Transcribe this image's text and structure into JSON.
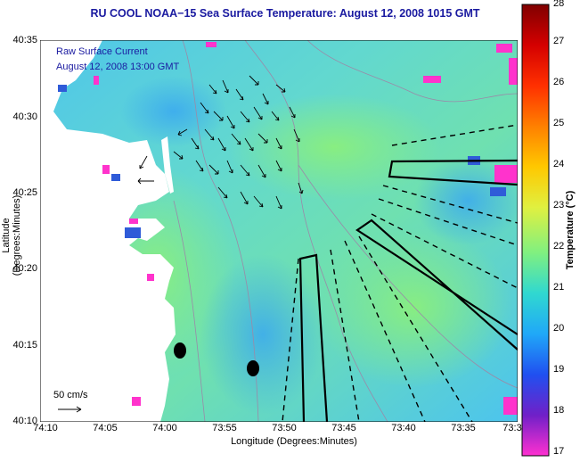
{
  "title": "RU COOL  NOAA−15  Sea Surface Temperature:  August 12, 2008 1015 GMT",
  "legend": {
    "line1": "Raw Surface Current",
    "line2": "August 12, 2008 13:00 GMT",
    "scale_label": "50 cm/s"
  },
  "axes": {
    "xlabel": "Longitude (Degrees:Minutes)",
    "ylabel": "Latitude (Degrees:Minutes)",
    "xticks": [
      "74:10",
      "74:05",
      "74:00",
      "73:55",
      "73:50",
      "73:45",
      "73:40",
      "73:35",
      "73:3"
    ],
    "yticks": [
      "40:35",
      "40:30",
      "40:25",
      "40:20",
      "40:15",
      "40:10"
    ]
  },
  "colorbar": {
    "label": "Temperature (°C)",
    "ticks": [
      "28",
      "27",
      "26",
      "25",
      "24",
      "23",
      "22",
      "21",
      "20",
      "19",
      "18",
      "17"
    ],
    "min": 17,
    "max": 28
  },
  "colors": {
    "land": "#ffffff",
    "water_cool": "#55c8e8",
    "water_warm": "#78e896",
    "cloud_mask": "#ff33cc",
    "title_color": "#1a1aa0"
  }
}
